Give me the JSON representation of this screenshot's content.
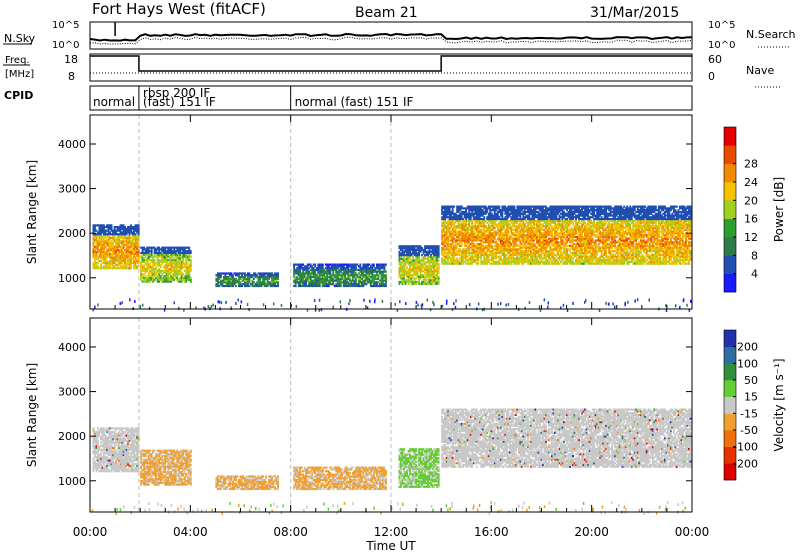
{
  "header": {
    "station": "Fort Hays West (fitACF)",
    "beam": "Beam 21",
    "date": "31/Mar/2015"
  },
  "status_panels": {
    "nsky_label": "N.Sky",
    "nsky_ticks": [
      "10^5",
      "10^0"
    ],
    "nsearch_label": "N.Search",
    "nsearch_ticks": [
      "10^5",
      "10^0"
    ],
    "freq_label": "Freq.",
    "freq_unit": "[MHz]",
    "freq_ticks": [
      "18",
      "8"
    ],
    "nave_label": "Nave",
    "nave_ticks": [
      "60",
      "0"
    ],
    "cpid_label": "CPID",
    "cpid_segments": [
      {
        "label": "normal",
        "start": 0.0
      },
      {
        "label": "rbsp 200 IF",
        "start": 1.95
      },
      {
        "label": "(fast) 151 IF",
        "start": 1.95
      },
      {
        "label": "normal (fast) 151 IF",
        "start": 8.0
      }
    ],
    "freq_high_segments": [
      [
        0.0,
        1.95
      ],
      [
        14.0,
        24.0
      ]
    ]
  },
  "chart_data": [
    {
      "type": "heatmap",
      "name": "power",
      "ylabel": "Slant Range [km]",
      "yticks": [
        1000,
        2000,
        3000,
        4000
      ],
      "ylim": [
        300,
        4650
      ],
      "xlim": [
        0,
        24
      ],
      "colorbar_label": "Power [dB]",
      "colorbar_ticks": [
        "4",
        "8",
        "12",
        "16",
        "20",
        "24",
        "28"
      ],
      "colorbar_colors": [
        "#1a1aff",
        "#1f4fb0",
        "#2f7a4a",
        "#2f9c2f",
        "#9fcf1f",
        "#f5c200",
        "#f08a00",
        "#e84a00",
        "#e00000"
      ],
      "echo_regions": [
        {
          "t0": 0.1,
          "t1": 1.95,
          "r0": 1200,
          "r1": 2200,
          "level": "high"
        },
        {
          "t0": 2.0,
          "t1": 4.0,
          "r0": 900,
          "r1": 1700,
          "level": "mid"
        },
        {
          "t0": 5.0,
          "t1": 7.5,
          "r0": 800,
          "r1": 1100,
          "level": "low"
        },
        {
          "t0": 8.1,
          "t1": 11.8,
          "r0": 800,
          "r1": 1300,
          "level": "low"
        },
        {
          "t0": 12.3,
          "t1": 13.9,
          "r0": 850,
          "r1": 1700,
          "level": "mid"
        },
        {
          "t0": 14.0,
          "t1": 23.9,
          "r0": 1300,
          "r1": 2600,
          "level": "high"
        }
      ]
    },
    {
      "type": "heatmap",
      "name": "velocity",
      "ylabel": "Slant Range [km]",
      "yticks": [
        1000,
        2000,
        3000,
        4000
      ],
      "ylim": [
        300,
        4650
      ],
      "xlim": [
        0,
        24
      ],
      "xticks": [
        "00:00",
        "04:00",
        "08:00",
        "12:00",
        "16:00",
        "20:00",
        "00:00"
      ],
      "xlabel": "Time UT",
      "colorbar_label": "Velocity [m s⁻¹]",
      "colorbar_ticks": [
        "200",
        "100",
        "50",
        "15",
        "-15",
        "-50",
        "-100",
        "-200"
      ],
      "colorbar_colors": [
        "#2233aa",
        "#2f6f9f",
        "#2f8f3f",
        "#66cc33",
        "#c8c8c8",
        "#f0a030",
        "#f07010",
        "#e83000",
        "#dd0000"
      ],
      "echo_regions": [
        {
          "t0": 0.1,
          "t1": 1.95,
          "r0": 1200,
          "r1": 2200,
          "level": "gray"
        },
        {
          "t0": 2.0,
          "t1": 4.0,
          "r0": 900,
          "r1": 1700,
          "level": "orange"
        },
        {
          "t0": 5.0,
          "t1": 7.5,
          "r0": 800,
          "r1": 1100,
          "level": "orange"
        },
        {
          "t0": 8.1,
          "t1": 11.8,
          "r0": 800,
          "r1": 1300,
          "level": "orange"
        },
        {
          "t0": 12.3,
          "t1": 13.9,
          "r0": 850,
          "r1": 1700,
          "level": "green"
        },
        {
          "t0": 14.0,
          "t1": 23.9,
          "r0": 1300,
          "r1": 2600,
          "level": "gray"
        }
      ]
    }
  ]
}
